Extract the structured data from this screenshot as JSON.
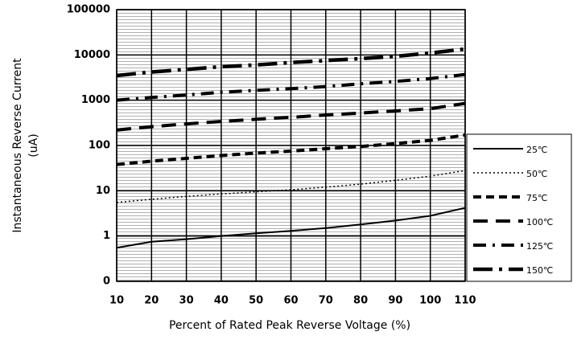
{
  "chart_data": {
    "type": "line",
    "y_label": [
      "Instantaneous Reverse Current",
      "(uA)"
    ],
    "x_label": "Percent of  Rated Peak Reverse Voltage (%)",
    "x": [
      10,
      20,
      30,
      40,
      50,
      60,
      70,
      80,
      90,
      100,
      110
    ],
    "xlim": [
      10,
      110
    ],
    "xticks": [
      10,
      20,
      30,
      40,
      50,
      60,
      70,
      80,
      90,
      100,
      110
    ],
    "ylim": [
      0.1,
      100000
    ],
    "y_scale": "log",
    "yticks": [
      {
        "value": 0.1,
        "label": "0"
      },
      1,
      10,
      100,
      1000,
      10000,
      100000
    ],
    "grid": true,
    "legend": "right",
    "series": [
      {
        "name": "25℃",
        "color": "#000000",
        "style": "solid",
        "values": [
          0.55,
          0.75,
          0.85,
          1.0,
          1.15,
          1.3,
          1.5,
          1.8,
          2.2,
          2.8,
          4.2
        ]
      },
      {
        "name": "50℃",
        "color": "#000000",
        "style": "dotted",
        "values": [
          5.5,
          6.5,
          7.5,
          8.5,
          9.5,
          10.5,
          12,
          14,
          17,
          21,
          28
        ]
      },
      {
        "name": "75℃",
        "color": "#000000",
        "style": "short-dash",
        "values": [
          38,
          45,
          52,
          60,
          68,
          75,
          85,
          95,
          110,
          130,
          170
        ]
      },
      {
        "name": "100℃",
        "color": "#000000",
        "style": "long-dash",
        "values": [
          220,
          260,
          300,
          340,
          380,
          420,
          470,
          520,
          580,
          650,
          850
        ]
      },
      {
        "name": "125℃",
        "color": "#000000",
        "style": "dash-dot",
        "values": [
          1000,
          1150,
          1300,
          1500,
          1650,
          1800,
          2000,
          2300,
          2600,
          3000,
          3700
        ]
      },
      {
        "name": "150℃",
        "color": "#000000",
        "style": "long-dash-dot",
        "values": [
          3500,
          4200,
          4800,
          5500,
          6000,
          6800,
          7500,
          8300,
          9300,
          11000,
          13500
        ]
      }
    ]
  }
}
